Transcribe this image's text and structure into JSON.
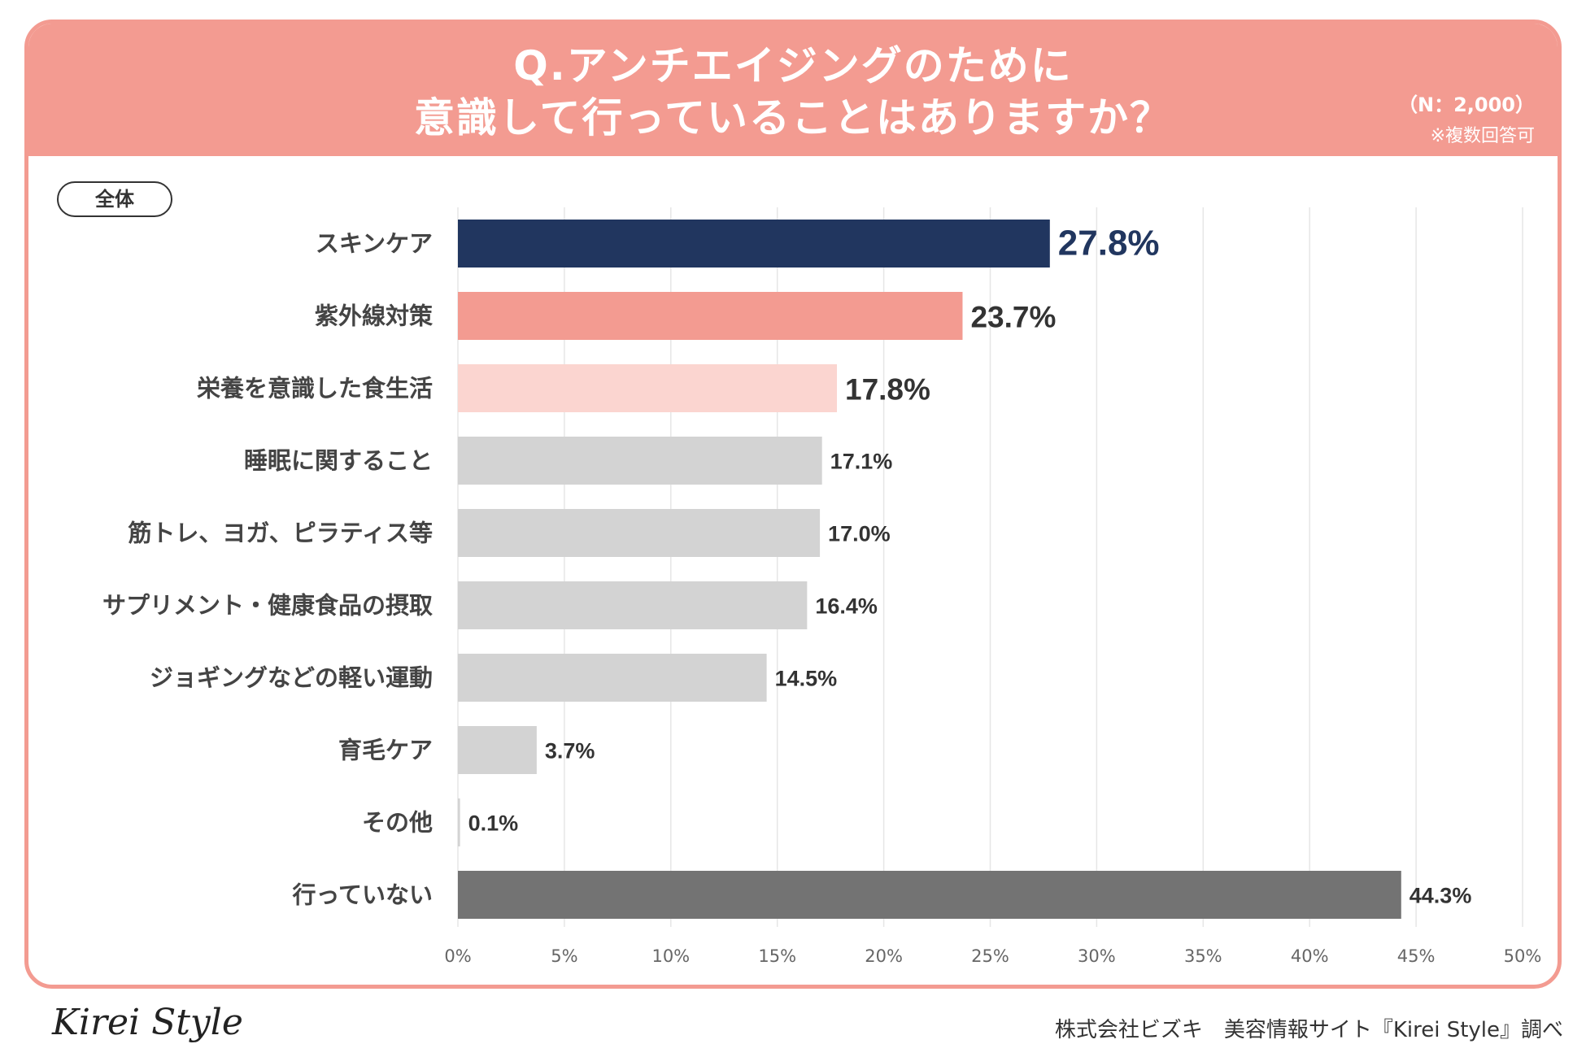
{
  "header": {
    "title_line1": "Q.アンチエイジングのために",
    "title_line2": "意識して行っていることはありますか？",
    "sample_note": "（N：2,000）",
    "multi_note": "※複数回答可"
  },
  "segment_label": "全体",
  "footer": {
    "logo": "Kirei Style",
    "credit": "株式会社ビズキ　美容情報サイト『Kirei Style』調べ"
  },
  "colors": {
    "accent": "#f39b91",
    "rank1": "#21365f",
    "rank2": "#f39b91",
    "rank3": "#fbd5d0",
    "others": "#d3d3d3",
    "none": "#737373"
  },
  "chart_data": {
    "type": "bar",
    "orientation": "horizontal",
    "title": "Q.アンチエイジングのために意識して行っていることはありますか？",
    "xlabel": "",
    "ylabel": "",
    "xlim": [
      0,
      50
    ],
    "grid": true,
    "x_ticks": [
      "0%",
      "5%",
      "10%",
      "15%",
      "20%",
      "25%",
      "30%",
      "35%",
      "40%",
      "45%",
      "50%"
    ],
    "categories": [
      "スキンケア",
      "紫外線対策",
      "栄養を意識した食生活",
      "睡眠に関すること",
      "筋トレ、ヨガ、ピラティス等",
      "サプリメント・健康食品の摂取",
      "ジョギングなどの軽い運動",
      "育毛ケア",
      "その他",
      "行っていない"
    ],
    "values": [
      27.8,
      23.7,
      17.8,
      17.1,
      17.0,
      16.4,
      14.5,
      3.7,
      0.1,
      44.3
    ],
    "value_labels": [
      "27.8%",
      "23.7%",
      "17.8%",
      "17.1%",
      "17.0%",
      "16.4%",
      "14.5%",
      "3.7%",
      "0.1%",
      "44.3%"
    ],
    "bar_colors": [
      "#21365f",
      "#f39b91",
      "#fbd5d0",
      "#d3d3d3",
      "#d3d3d3",
      "#d3d3d3",
      "#d3d3d3",
      "#d3d3d3",
      "#d3d3d3",
      "#737373"
    ]
  }
}
